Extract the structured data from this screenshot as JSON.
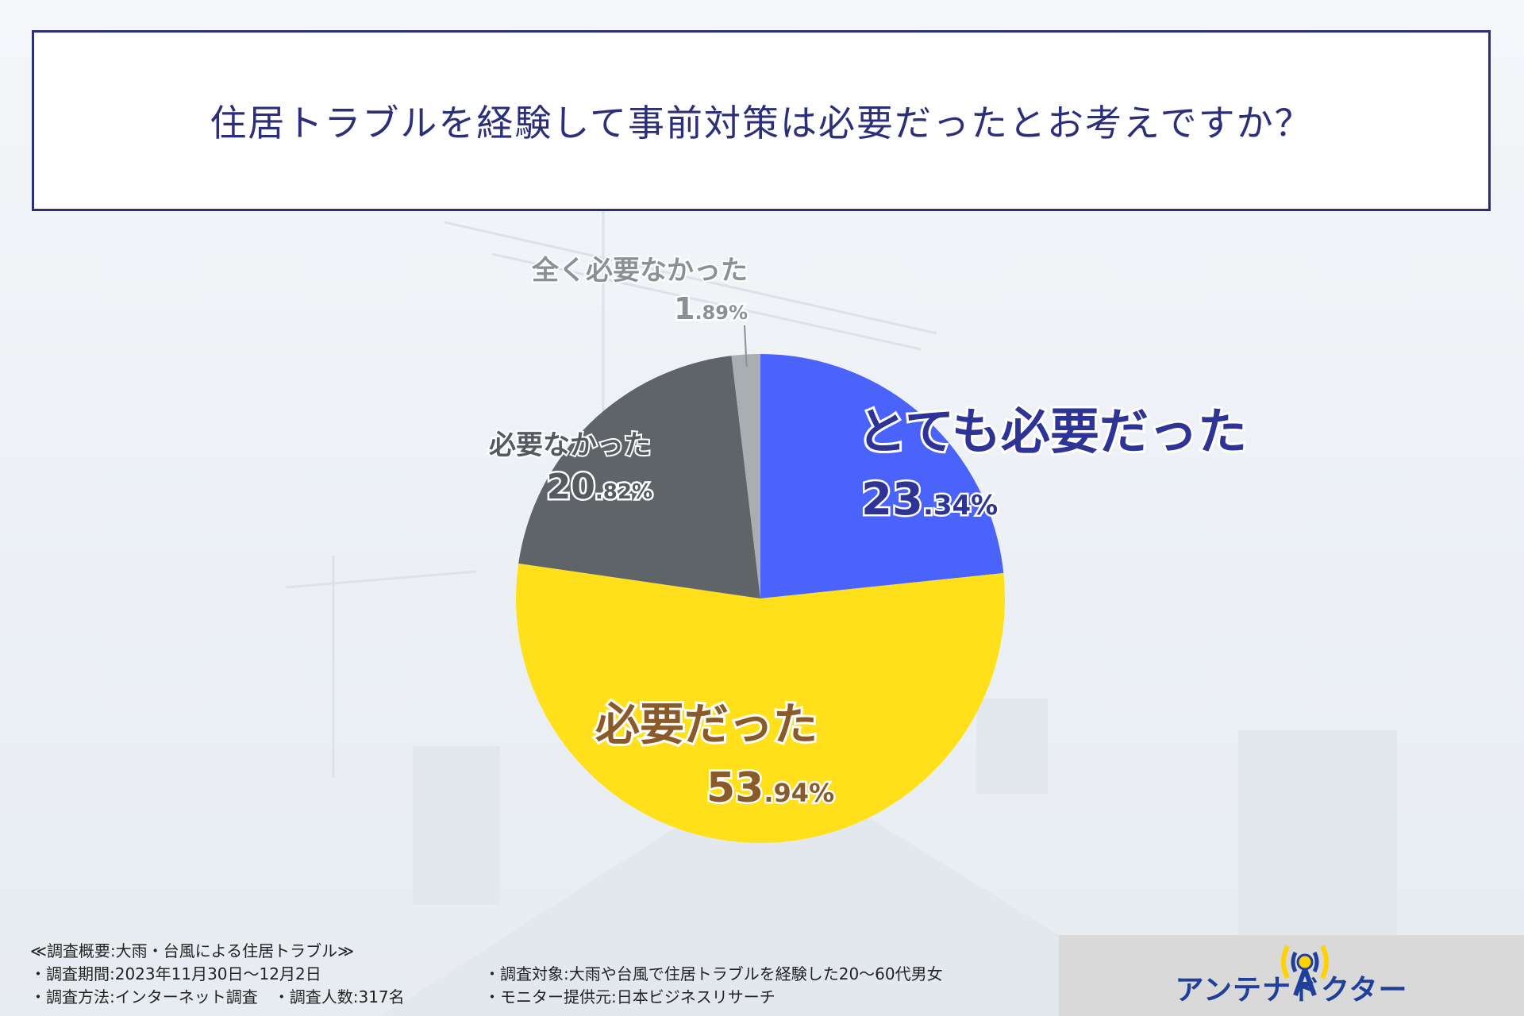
{
  "title": "住居トラブルを経験して事前対策は必要だったとお考えですか？",
  "chart_data": {
    "type": "pie",
    "slices": [
      {
        "label": "とても必要だった",
        "value": 23.34,
        "int": "23",
        "dec": ".34%",
        "color": "#4a63fb",
        "text_color": "#2e3396"
      },
      {
        "label": "必要だった",
        "value": 53.94,
        "int": "53",
        "dec": ".94%",
        "color": "#ffe01a",
        "text_color": "#8a5a2b"
      },
      {
        "label": "必要なかった",
        "value": 20.82,
        "int": "20",
        "dec": ".82%",
        "color": "#5f6468",
        "text_color": "#555a60"
      },
      {
        "label": "全く必要なかった",
        "value": 1.89,
        "int": "1",
        "dec": ".89%",
        "color": "#a9aeb3",
        "text_color": "#8c9095"
      }
    ]
  },
  "footer": {
    "lines_left": [
      "≪調査概要:大雨・台風による住居トラブル≫",
      "・調査期間:2023年11月30日〜12月2日",
      "・調査方法:インターネット調査　・調査人数:317名"
    ],
    "lines_right": [
      "・調査対象:大雨や台風で住居トラブルを経験した20〜60代男女",
      "・モニター提供元:日本ビジネスリサーチ"
    ]
  },
  "logo": {
    "text": "アンテナドクター",
    "icon": "antenna-icon",
    "color": "#1f3f9a",
    "accent": "#ffd200"
  }
}
